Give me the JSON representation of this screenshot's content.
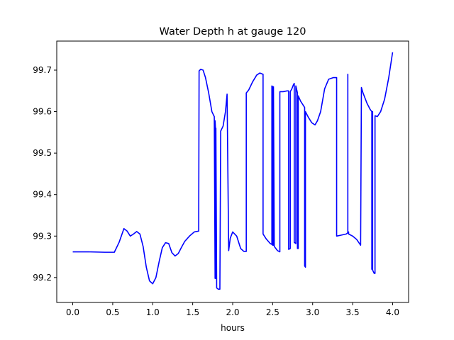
{
  "chart_data": {
    "type": "line",
    "title": "Water Depth h at gauge 120",
    "xlabel": "hours",
    "ylabel": "",
    "xlim": [
      -0.2,
      4.2
    ],
    "ylim": [
      99.14,
      99.77
    ],
    "xticks": [
      0.0,
      0.5,
      1.0,
      1.5,
      2.0,
      2.5,
      3.0,
      3.5,
      4.0
    ],
    "xtick_labels": [
      "0.0",
      "0.5",
      "1.0",
      "1.5",
      "2.0",
      "2.5",
      "3.0",
      "3.5",
      "4.0"
    ],
    "yticks": [
      99.2,
      99.3,
      99.4,
      99.5,
      99.6,
      99.7
    ],
    "ytick_labels": [
      "99.2",
      "99.3",
      "99.4",
      "99.5",
      "99.6",
      "99.7"
    ],
    "grid": false,
    "series_color": "#0000ff",
    "series": [
      {
        "x": [
          0.0,
          0.2,
          0.4,
          0.52,
          0.58,
          0.64,
          0.68,
          0.72,
          0.76,
          0.8,
          0.84,
          0.88,
          0.92,
          0.96,
          1.0,
          1.04,
          1.08,
          1.12,
          1.16,
          1.2,
          1.24,
          1.28,
          1.32,
          1.36,
          1.4,
          1.46,
          1.52,
          1.575,
          1.58,
          1.6,
          1.63,
          1.66,
          1.7,
          1.74,
          1.77,
          1.78,
          1.78,
          1.785,
          1.79,
          1.79,
          1.8,
          1.82,
          1.84,
          1.85,
          1.85,
          1.88,
          1.91,
          1.93,
          1.95,
          1.95,
          1.97,
          2.0,
          2.05,
          2.1,
          2.14,
          2.17,
          2.17,
          2.2,
          2.25,
          2.3,
          2.34,
          2.38,
          2.38,
          2.42,
          2.47,
          2.49,
          2.49,
          2.5,
          2.5,
          2.51,
          2.51,
          2.52,
          2.56,
          2.59,
          2.59,
          2.63,
          2.68,
          2.7,
          2.7,
          2.72,
          2.72,
          2.74,
          2.76,
          2.77,
          2.77,
          2.79,
          2.79,
          2.81,
          2.81,
          2.82,
          2.82,
          2.85,
          2.9,
          2.9,
          2.91,
          2.91,
          2.95,
          2.99,
          3.03,
          3.06,
          3.1,
          3.15,
          3.2,
          3.26,
          3.3,
          3.3,
          3.35,
          3.42,
          3.44,
          3.44,
          3.44,
          3.45,
          3.45,
          3.5,
          3.55,
          3.6,
          3.61,
          3.61,
          3.63,
          3.68,
          3.72,
          3.74,
          3.74,
          3.745,
          3.75,
          3.75,
          3.77,
          3.78,
          3.78,
          3.81,
          3.85,
          3.9,
          3.95,
          4.0
        ],
        "y": [
          99.262,
          99.262,
          99.261,
          99.261,
          99.285,
          99.318,
          99.312,
          99.3,
          99.305,
          99.311,
          99.305,
          99.275,
          99.225,
          99.192,
          99.185,
          99.2,
          99.238,
          99.272,
          99.284,
          99.282,
          99.26,
          99.252,
          99.258,
          99.273,
          99.287,
          99.3,
          99.31,
          99.312,
          99.698,
          99.702,
          99.7,
          99.682,
          99.645,
          99.6,
          99.588,
          99.198,
          99.578,
          99.56,
          99.198,
          99.56,
          99.175,
          99.172,
          99.172,
          99.553,
          99.553,
          99.565,
          99.6,
          99.642,
          99.265,
          99.265,
          99.295,
          99.31,
          99.3,
          99.27,
          99.263,
          99.263,
          99.645,
          99.652,
          99.672,
          99.688,
          99.693,
          99.69,
          99.305,
          99.293,
          99.282,
          99.28,
          99.662,
          99.66,
          99.278,
          99.278,
          99.66,
          99.275,
          99.265,
          99.262,
          99.648,
          99.648,
          99.65,
          99.65,
          99.268,
          99.27,
          99.648,
          99.655,
          99.665,
          99.668,
          99.285,
          99.282,
          99.662,
          99.645,
          99.27,
          99.27,
          99.638,
          99.625,
          99.61,
          99.228,
          99.225,
          99.6,
          99.585,
          99.573,
          99.568,
          99.578,
          99.6,
          99.655,
          99.678,
          99.682,
          99.682,
          99.3,
          99.302,
          99.305,
          99.308,
          99.69,
          99.31,
          99.31,
          99.305,
          99.3,
          99.292,
          99.278,
          99.658,
          99.658,
          99.645,
          99.62,
          99.605,
          99.6,
          99.22,
          99.6,
          99.6,
          99.218,
          99.21,
          99.21,
          99.59,
          99.588,
          99.6,
          99.63,
          99.68,
          99.743
        ]
      }
    ]
  }
}
